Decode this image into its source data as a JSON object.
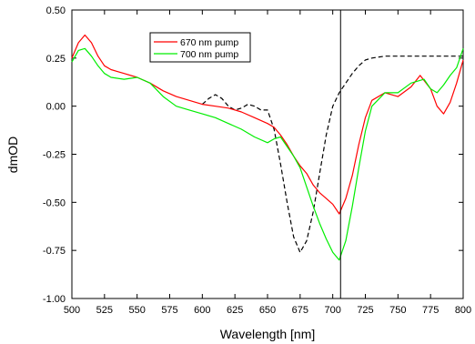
{
  "chart_data": {
    "type": "line",
    "xlabel": "Wavelength [nm]",
    "ylabel": "dmOD",
    "xlim": [
      500,
      800
    ],
    "ylim": [
      -1.0,
      0.5
    ],
    "xticks": [
      500,
      525,
      550,
      575,
      600,
      625,
      650,
      675,
      700,
      725,
      750,
      775,
      800
    ],
    "xtick_labels": [
      "500",
      "525",
      "550",
      "575",
      "600",
      "625",
      "650",
      "675",
      "700",
      "725",
      "750",
      "775",
      "800"
    ],
    "yticks": [
      -1.0,
      -0.75,
      -0.5,
      -0.25,
      0.0,
      0.25,
      0.5
    ],
    "ytick_labels": [
      "-1.00",
      "-0.75",
      "-0.50",
      "-0.25",
      "0.00",
      "0.25",
      "0.50"
    ],
    "grid": false,
    "legend_position": "top-left",
    "vertical_line_x": 706,
    "series": [
      {
        "name": "670 nm pump",
        "color": "#ff0000",
        "style": "solid",
        "legend": true,
        "x": [
          500,
          505,
          510,
          515,
          520,
          525,
          530,
          540,
          550,
          560,
          570,
          580,
          590,
          600,
          610,
          620,
          630,
          640,
          650,
          655,
          660,
          665,
          670,
          675,
          680,
          685,
          690,
          695,
          700,
          705,
          710,
          715,
          720,
          725,
          730,
          740,
          750,
          760,
          767,
          775,
          780,
          785,
          790,
          795,
          800
        ],
        "y": [
          0.25,
          0.33,
          0.37,
          0.33,
          0.26,
          0.21,
          0.19,
          0.17,
          0.15,
          0.12,
          0.08,
          0.05,
          0.03,
          0.01,
          0.0,
          -0.01,
          -0.03,
          -0.06,
          -0.09,
          -0.11,
          -0.15,
          -0.2,
          -0.26,
          -0.31,
          -0.35,
          -0.41,
          -0.45,
          -0.48,
          -0.51,
          -0.56,
          -0.48,
          -0.36,
          -0.2,
          -0.06,
          0.03,
          0.07,
          0.05,
          0.1,
          0.16,
          0.09,
          0.0,
          -0.04,
          0.02,
          0.12,
          0.24
        ]
      },
      {
        "name": "700 nm pump",
        "color": "#00ee00",
        "style": "solid",
        "legend": true,
        "x": [
          500,
          505,
          510,
          515,
          520,
          525,
          530,
          540,
          550,
          560,
          570,
          580,
          590,
          600,
          610,
          620,
          630,
          640,
          650,
          655,
          660,
          665,
          670,
          675,
          680,
          685,
          690,
          695,
          700,
          705,
          710,
          715,
          720,
          725,
          730,
          740,
          750,
          760,
          770,
          775,
          780,
          785,
          790,
          795,
          800
        ],
        "y": [
          0.23,
          0.29,
          0.3,
          0.26,
          0.21,
          0.17,
          0.15,
          0.14,
          0.15,
          0.12,
          0.05,
          0.0,
          -0.02,
          -0.04,
          -0.06,
          -0.09,
          -0.12,
          -0.16,
          -0.19,
          -0.17,
          -0.16,
          -0.21,
          -0.26,
          -0.32,
          -0.42,
          -0.52,
          -0.61,
          -0.69,
          -0.76,
          -0.8,
          -0.7,
          -0.52,
          -0.32,
          -0.13,
          0.0,
          0.07,
          0.07,
          0.12,
          0.14,
          0.09,
          0.07,
          0.11,
          0.16,
          0.2,
          0.3
        ]
      },
      {
        "name": "",
        "color": "#000000",
        "style": "dashed",
        "legend": false,
        "x": [
          600,
          605,
          610,
          615,
          620,
          625,
          630,
          635,
          640,
          645,
          650,
          655,
          660,
          665,
          670,
          675,
          680,
          685,
          690,
          695,
          700,
          705,
          710,
          715,
          720,
          725,
          730,
          740,
          750,
          760,
          770,
          780,
          790,
          800
        ],
        "y": [
          0.01,
          0.04,
          0.06,
          0.04,
          0.0,
          -0.02,
          -0.01,
          0.01,
          0.0,
          -0.02,
          -0.02,
          -0.12,
          -0.3,
          -0.5,
          -0.68,
          -0.76,
          -0.7,
          -0.55,
          -0.35,
          -0.15,
          0.0,
          0.07,
          0.12,
          0.17,
          0.21,
          0.24,
          0.25,
          0.26,
          0.26,
          0.26,
          0.26,
          0.26,
          0.26,
          0.26
        ]
      }
    ]
  }
}
